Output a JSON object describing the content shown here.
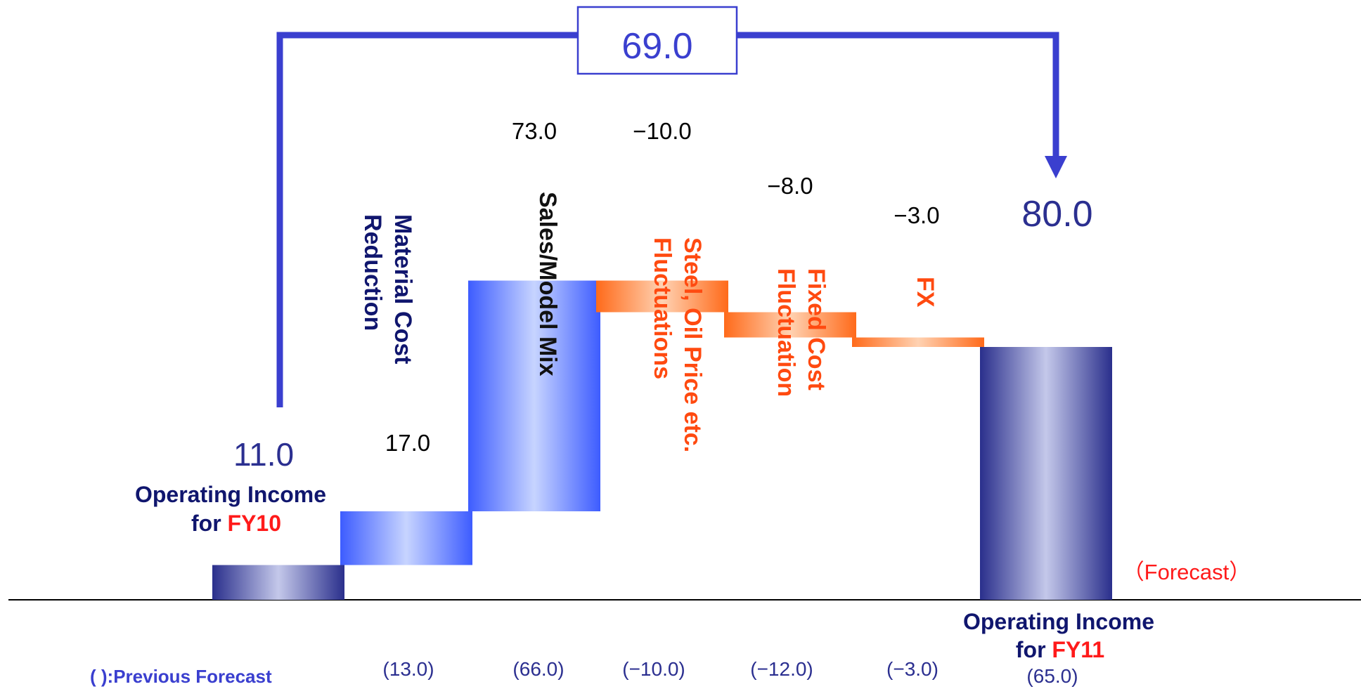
{
  "chart_data": {
    "type": "bar",
    "subtype": "waterfall",
    "categories": [
      "FY10",
      "Material Cost Reduction",
      "Sales/Model Mix",
      "Steel, Oil Price etc. Fluctuations",
      "Fixed Cost Fluctuation",
      "FX",
      "FY11"
    ],
    "values": [
      11.0,
      17.0,
      73.0,
      -10.0,
      -8.0,
      -3.0,
      80.0
    ],
    "value_labels": [
      "11.0",
      "17.0",
      "73.0",
      "−10.0",
      "−8.0",
      "−3.0",
      "80.0"
    ],
    "previous_forecast": [
      null,
      13.0,
      66.0,
      -10.0,
      -12.0,
      -3.0,
      65.0
    ],
    "previous_forecast_labels": [
      "",
      "(13.0)",
      "(66.0)",
      "(−10.0)",
      "(−12.0)",
      "(−3.0)",
      "(65.0)"
    ],
    "total_change": 69.0,
    "total_change_label": "69.0",
    "ylim": [
      0,
      180
    ],
    "colors": {
      "base_bar": "#2a2f8c",
      "increase_bar": "#3d5cff",
      "decrease_bar": "#ff6a1a",
      "arrow": "#3a3fcf",
      "start_end_text": "#2b2f90",
      "label_navy": "#10166e",
      "label_orange": "#ff4a10",
      "red_text": "#ff1a1a"
    }
  },
  "labels": {
    "start_line1": "Operating Income",
    "start_line2_prefix": "for ",
    "start_line2_year": "FY10",
    "end_line1": "Operating Income",
    "end_line2_prefix": "for ",
    "end_line2_year": "FY11",
    "forecast_note": "（Forecast）",
    "legend_note": "( ):Previous Forecast",
    "material": [
      "Material Cost",
      "Reduction"
    ],
    "sales": [
      "Sales/Model Mix"
    ],
    "steel": [
      "Steel, Oil Price etc.",
      "Fluctuations"
    ],
    "fixed": [
      "Fixed Cost",
      "Fluctuation"
    ],
    "fx": [
      "FX"
    ]
  }
}
